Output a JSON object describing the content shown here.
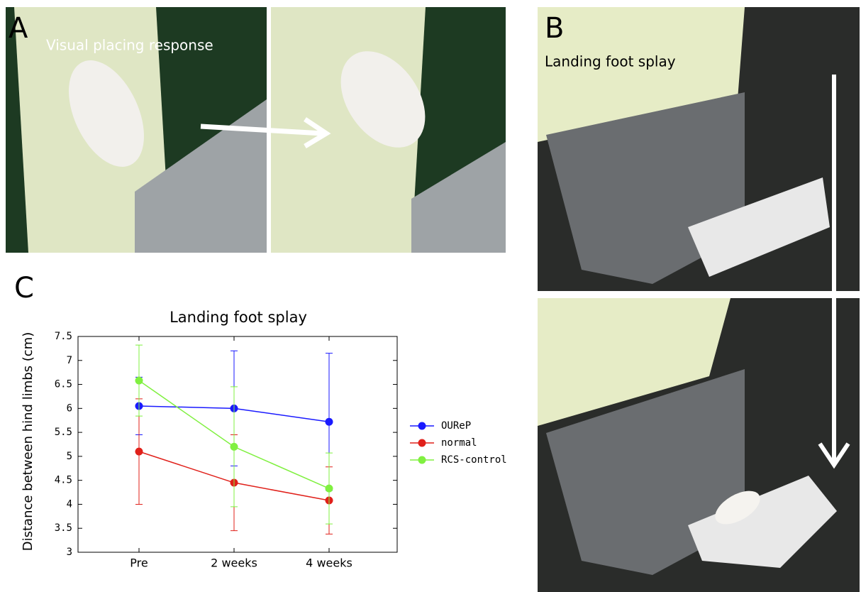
{
  "panels": {
    "a_label": "A",
    "a_caption": "Visual placing response",
    "b_label": "B",
    "b_caption": "Landing foot splay",
    "c_label": "C"
  },
  "chart_data": {
    "type": "line",
    "title": "Landing foot splay",
    "y_label": "Distance between hind limbs (cm)",
    "categories": [
      "Pre",
      "2 weeks",
      "4 weeks"
    ],
    "series": [
      {
        "name": "OUReP",
        "color": "#1a1aff",
        "values": [
          6.05,
          6.0,
          5.72
        ],
        "errors": [
          0.6,
          1.2,
          1.43
        ]
      },
      {
        "name": "normal",
        "color": "#e0201a",
        "values": [
          5.1,
          4.45,
          4.08
        ],
        "errors": [
          1.1,
          1.0,
          0.7
        ]
      },
      {
        "name": "RCS-control",
        "color": "#80f040",
        "values": [
          6.58,
          5.2,
          4.33
        ],
        "errors": [
          0.74,
          1.25,
          0.74
        ]
      }
    ],
    "ylim": [
      3,
      7.5
    ],
    "yticks": [
      3,
      3.5,
      4,
      4.5,
      5,
      5.5,
      6,
      6.5,
      7,
      7.5
    ],
    "grid": false
  }
}
